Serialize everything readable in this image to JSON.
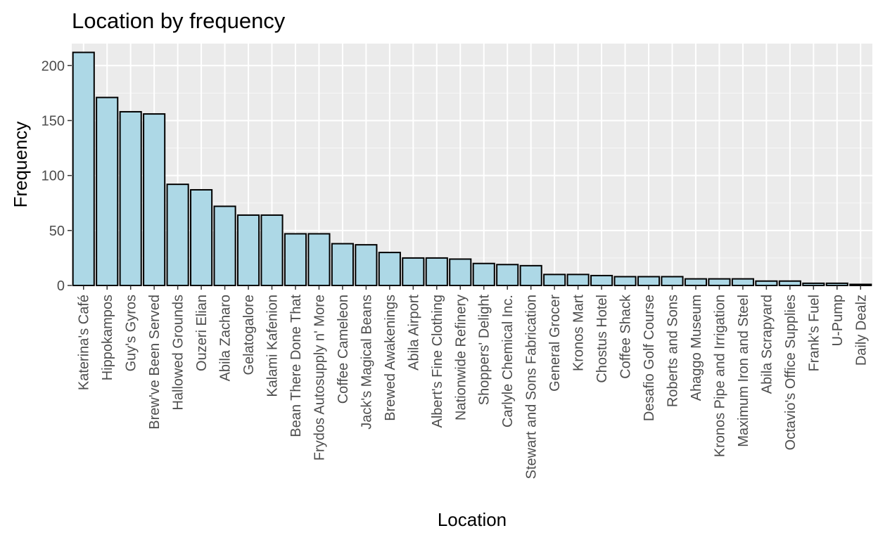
{
  "chart_data": {
    "type": "bar",
    "title": "Location by frequency",
    "xlabel": "Location",
    "ylabel": "Frequency",
    "ylim": [
      0,
      220
    ],
    "yticks": [
      0,
      50,
      100,
      150,
      200
    ],
    "grid": true,
    "legend": "none",
    "categories": [
      "Katerina's Café",
      "Hippokampos",
      "Guy's Gyros",
      "Brew've Been Served",
      "Hallowed Grounds",
      "Ouzeri Elian",
      "Abila Zacharo",
      "Gelatogalore",
      "Kalami Kafenion",
      "Bean There Done That",
      "Frydos Autosupply n' More",
      "Coffee Cameleon",
      "Jack's Magical Beans",
      "Brewed Awakenings",
      "Abila Airport",
      "Albert's Fine Clothing",
      "Nationwide Refinery",
      "Shoppers' Delight",
      "Carlyle Chemical Inc.",
      "Stewart and Sons Fabrication",
      "General Grocer",
      "Kronos Mart",
      "Chostus Hotel",
      "Coffee Shack",
      "Desafio Golf Course",
      "Roberts and Sons",
      "Ahaggo Museum",
      "Kronos Pipe and Irrigation",
      "Maximum Iron and Steel",
      "Abila Scrapyard",
      "Octavio's Office Supplies",
      "Frank's Fuel",
      "U-Pump",
      "Daily Dealz"
    ],
    "values": [
      212,
      171,
      158,
      156,
      92,
      87,
      72,
      64,
      64,
      47,
      47,
      38,
      37,
      30,
      25,
      25,
      24,
      20,
      19,
      18,
      10,
      10,
      9,
      8,
      8,
      8,
      6,
      6,
      6,
      4,
      4,
      2,
      2,
      1
    ],
    "colors": {
      "panel": "#ebebeb",
      "grid_major": "#ffffff",
      "bar_fill": "#add8e6",
      "bar_stroke": "#000000",
      "tick_text": "#4d4d4d"
    }
  }
}
